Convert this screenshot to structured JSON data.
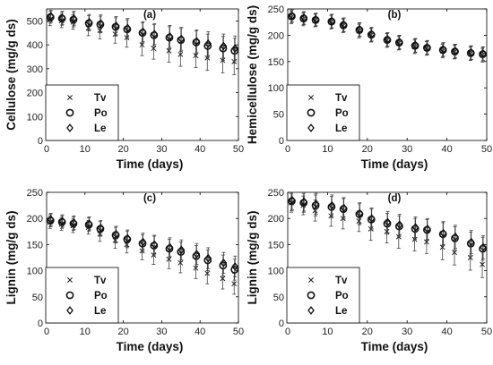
{
  "chart_data": [
    {
      "type": "scatter",
      "panel_label": "(a)",
      "xlabel": "Time (days)",
      "ylabel": "Cellulose (mg/g ds)",
      "xlim": [
        0,
        50
      ],
      "ylim": [
        0,
        550
      ],
      "xticks": [
        0,
        10,
        20,
        30,
        40,
        50
      ],
      "yticks": [
        0,
        100,
        200,
        300,
        400,
        500
      ],
      "legend": "lower-left",
      "series": [
        {
          "name": "Tv",
          "marker": "x",
          "x": [
            1,
            4,
            7,
            11,
            14,
            18,
            21,
            25,
            28,
            32,
            35,
            39,
            42,
            46,
            49
          ],
          "y": [
            505,
            500,
            495,
            470,
            460,
            445,
            430,
            400,
            385,
            375,
            360,
            355,
            345,
            335,
            330
          ],
          "err": [
            25,
            28,
            30,
            32,
            35,
            38,
            40,
            45,
            45,
            48,
            50,
            50,
            52,
            52,
            55
          ]
        },
        {
          "name": "Po",
          "marker": "o",
          "x": [
            1,
            4,
            7,
            11,
            14,
            18,
            21,
            25,
            28,
            32,
            35,
            39,
            42,
            46,
            49
          ],
          "y": [
            515,
            510,
            505,
            490,
            485,
            475,
            465,
            450,
            440,
            430,
            420,
            410,
            395,
            385,
            375
          ],
          "err": [
            25,
            28,
            30,
            32,
            35,
            38,
            40,
            42,
            44,
            46,
            48,
            48,
            50,
            50,
            52
          ]
        },
        {
          "name": "Le",
          "marker": "diamond",
          "x": [
            1,
            4,
            7,
            11,
            14,
            18,
            21,
            25,
            28,
            32,
            35,
            39,
            42,
            46,
            49
          ],
          "y": [
            520,
            512,
            510,
            495,
            490,
            480,
            470,
            455,
            445,
            435,
            425,
            415,
            405,
            395,
            385
          ],
          "err": [
            25,
            28,
            30,
            32,
            35,
            38,
            40,
            42,
            44,
            46,
            48,
            48,
            50,
            50,
            52
          ]
        }
      ]
    },
    {
      "type": "scatter",
      "panel_label": "(b)",
      "xlabel": "Time (days)",
      "ylabel": "Hemicellulose (mg/g ds)",
      "xlim": [
        0,
        50
      ],
      "ylim": [
        0,
        250
      ],
      "xticks": [
        0,
        10,
        20,
        30,
        40,
        50
      ],
      "yticks": [
        0,
        50,
        100,
        150,
        200,
        250
      ],
      "legend": "lower-left",
      "series": [
        {
          "name": "Tv",
          "marker": "x",
          "x": [
            1,
            4,
            7,
            11,
            14,
            18,
            21,
            25,
            28,
            32,
            35,
            39,
            42,
            46,
            49
          ],
          "y": [
            234,
            230,
            228,
            225,
            218,
            208,
            200,
            190,
            185,
            178,
            175,
            170,
            168,
            165,
            162
          ],
          "err": [
            12,
            12,
            12,
            13,
            13,
            13,
            13,
            13,
            13,
            13,
            13,
            13,
            13,
            13,
            13
          ]
        },
        {
          "name": "Po",
          "marker": "o",
          "x": [
            1,
            4,
            7,
            11,
            14,
            18,
            21,
            25,
            28,
            32,
            35,
            39,
            42,
            46,
            49
          ],
          "y": [
            236,
            232,
            229,
            226,
            219,
            210,
            201,
            191,
            186,
            180,
            176,
            172,
            169,
            166,
            164
          ],
          "err": [
            12,
            12,
            12,
            13,
            13,
            13,
            13,
            13,
            13,
            13,
            13,
            13,
            13,
            13,
            13
          ]
        },
        {
          "name": "Le",
          "marker": "diamond",
          "x": [
            1,
            4,
            7,
            11,
            14,
            18,
            21,
            25,
            28,
            32,
            35,
            39,
            42,
            46,
            49
          ],
          "y": [
            237,
            233,
            230,
            227,
            220,
            211,
            202,
            192,
            187,
            181,
            177,
            173,
            170,
            167,
            165
          ],
          "err": [
            12,
            12,
            12,
            13,
            13,
            13,
            13,
            13,
            13,
            13,
            13,
            13,
            13,
            13,
            13
          ]
        }
      ]
    },
    {
      "type": "scatter",
      "panel_label": "(c)",
      "xlabel": "Time (days)",
      "ylabel": "Lignin (mg/g ds)",
      "xlim": [
        0,
        50
      ],
      "ylim": [
        0,
        250
      ],
      "xticks": [
        0,
        10,
        20,
        30,
        40,
        50
      ],
      "yticks": [
        0,
        50,
        100,
        150,
        200,
        250
      ],
      "legend": "lower-left",
      "series": [
        {
          "name": "Tv",
          "marker": "x",
          "x": [
            1,
            4,
            7,
            11,
            14,
            18,
            21,
            25,
            28,
            32,
            35,
            39,
            42,
            46,
            49
          ],
          "y": [
            193,
            189,
            186,
            183,
            170,
            158,
            150,
            138,
            130,
            122,
            115,
            105,
            95,
            85,
            75
          ],
          "err": [
            12,
            12,
            13,
            13,
            14,
            15,
            16,
            17,
            18,
            18,
            19,
            20,
            20,
            20,
            20
          ]
        },
        {
          "name": "Po",
          "marker": "o",
          "x": [
            1,
            4,
            7,
            11,
            14,
            18,
            21,
            25,
            28,
            32,
            35,
            39,
            42,
            46,
            49
          ],
          "y": [
            196,
            193,
            190,
            188,
            180,
            168,
            160,
            152,
            148,
            142,
            136,
            128,
            120,
            110,
            102
          ],
          "err": [
            12,
            12,
            13,
            13,
            14,
            15,
            16,
            17,
            18,
            18,
            19,
            20,
            20,
            20,
            20
          ]
        },
        {
          "name": "Le",
          "marker": "diamond",
          "x": [
            1,
            4,
            7,
            11,
            14,
            18,
            21,
            25,
            28,
            32,
            35,
            39,
            42,
            46,
            49
          ],
          "y": [
            198,
            195,
            192,
            190,
            182,
            170,
            162,
            155,
            150,
            145,
            140,
            132,
            124,
            115,
            108
          ],
          "err": [
            12,
            12,
            13,
            13,
            14,
            15,
            16,
            17,
            18,
            18,
            19,
            20,
            20,
            20,
            20
          ]
        }
      ]
    },
    {
      "type": "scatter",
      "panel_label": "(d)",
      "xlabel": "Time (days)",
      "ylabel": "Lignin (mg/g ds)",
      "xlim": [
        0,
        50
      ],
      "ylim": [
        0,
        250
      ],
      "xticks": [
        0,
        10,
        20,
        30,
        40,
        50
      ],
      "yticks": [
        0,
        50,
        100,
        150,
        200,
        250
      ],
      "legend": "lower-left",
      "series": [
        {
          "name": "Tv",
          "marker": "x",
          "x": [
            1,
            4,
            7,
            11,
            14,
            18,
            21,
            25,
            28,
            32,
            35,
            39,
            42,
            46,
            49
          ],
          "y": [
            230,
            225,
            215,
            205,
            200,
            195,
            180,
            175,
            165,
            160,
            155,
            145,
            135,
            125,
            112
          ],
          "err": [
            18,
            18,
            20,
            20,
            20,
            20,
            22,
            22,
            22,
            22,
            22,
            24,
            24,
            24,
            25
          ]
        },
        {
          "name": "Po",
          "marker": "o",
          "x": [
            1,
            4,
            7,
            11,
            14,
            18,
            21,
            25,
            28,
            32,
            35,
            39,
            42,
            46,
            49
          ],
          "y": [
            233,
            230,
            225,
            222,
            218,
            208,
            198,
            190,
            185,
            180,
            178,
            170,
            162,
            152,
            142
          ],
          "err": [
            18,
            18,
            20,
            20,
            20,
            20,
            20,
            20,
            20,
            20,
            20,
            22,
            22,
            22,
            22
          ]
        },
        {
          "name": "Le",
          "marker": "diamond",
          "x": [
            1,
            4,
            7,
            11,
            14,
            18,
            21,
            25,
            28,
            32,
            35,
            39,
            42,
            46,
            49
          ],
          "y": [
            235,
            232,
            228,
            225,
            220,
            210,
            200,
            193,
            188,
            183,
            180,
            172,
            165,
            155,
            145
          ],
          "err": [
            18,
            18,
            20,
            20,
            20,
            20,
            20,
            20,
            20,
            20,
            20,
            22,
            22,
            22,
            22
          ]
        }
      ]
    }
  ]
}
